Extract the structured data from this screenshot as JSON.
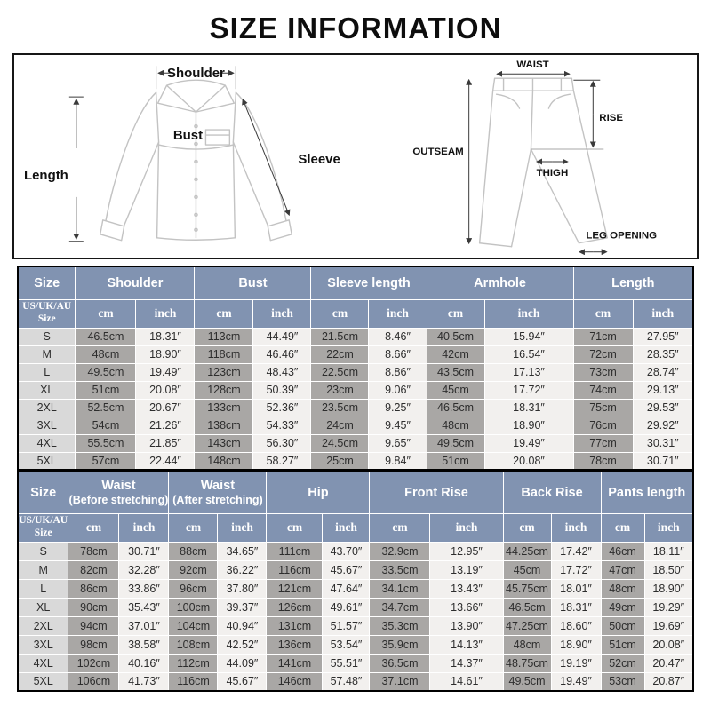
{
  "page": {
    "title": "SIZE INFORMATION"
  },
  "shirt_diagram": {
    "shoulder": "Shoulder",
    "length": "Length",
    "bust": "Bust",
    "sleeve": "Sleeve"
  },
  "pants_diagram": {
    "waist": "WAIST",
    "rise": "RISE",
    "outseam": "OUTSEAM",
    "thigh": "THIGH",
    "leg_opening": "LEG OPENING"
  },
  "colors": {
    "header_bg": "#8193b1",
    "header_text": "#ffffff",
    "size_cell_bg": "#d9d9d9",
    "cm_cell_bg": "#a9a7a5",
    "inch_cell_bg": "#f2f0ee",
    "cell_text": "#2d2d2d",
    "diagram_line": "#c3c3c3"
  },
  "top_table": {
    "corner": "Size",
    "region_line1": "US/UK/AU",
    "region_line2": "Size",
    "unit_cm": "cm",
    "unit_inch": "inch",
    "groups": [
      "Shoulder",
      "Bust",
      "Sleeve length",
      "Armhole",
      "Length"
    ],
    "rows": [
      {
        "size": "S",
        "values": [
          "46.5cm",
          "18.31″",
          "113cm",
          "44.49″",
          "21.5cm",
          "8.46″",
          "40.5cm",
          "15.94″",
          "71cm",
          "27.95″"
        ]
      },
      {
        "size": "M",
        "values": [
          "48cm",
          "18.90″",
          "118cm",
          "46.46″",
          "22cm",
          "8.66″",
          "42cm",
          "16.54″",
          "72cm",
          "28.35″"
        ]
      },
      {
        "size": "L",
        "values": [
          "49.5cm",
          "19.49″",
          "123cm",
          "48.43″",
          "22.5cm",
          "8.86″",
          "43.5cm",
          "17.13″",
          "73cm",
          "28.74″"
        ]
      },
      {
        "size": "XL",
        "values": [
          "51cm",
          "20.08″",
          "128cm",
          "50.39″",
          "23cm",
          "9.06″",
          "45cm",
          "17.72″",
          "74cm",
          "29.13″"
        ]
      },
      {
        "size": "2XL",
        "values": [
          "52.5cm",
          "20.67″",
          "133cm",
          "52.36″",
          "23.5cm",
          "9.25″",
          "46.5cm",
          "18.31″",
          "75cm",
          "29.53″"
        ]
      },
      {
        "size": "3XL",
        "values": [
          "54cm",
          "21.26″",
          "138cm",
          "54.33″",
          "24cm",
          "9.45″",
          "48cm",
          "18.90″",
          "76cm",
          "29.92″"
        ]
      },
      {
        "size": "4XL",
        "values": [
          "55.5cm",
          "21.85″",
          "143cm",
          "56.30″",
          "24.5cm",
          "9.65″",
          "49.5cm",
          "19.49″",
          "77cm",
          "30.31″"
        ]
      },
      {
        "size": "5XL",
        "values": [
          "57cm",
          "22.44″",
          "148cm",
          "58.27″",
          "25cm",
          "9.84″",
          "51cm",
          "20.08″",
          "78cm",
          "30.71″"
        ]
      }
    ]
  },
  "bottom_table": {
    "corner": "Size",
    "region_line1": "US/UK/AU",
    "region_line2": "Size",
    "unit_cm": "cm",
    "unit_inch": "inch",
    "groups": [
      {
        "title": "Waist",
        "sub": "(Before stretching)"
      },
      {
        "title": "Waist",
        "sub": "(After stretching)"
      },
      {
        "title": "Hip",
        "sub": ""
      },
      {
        "title": "Front Rise",
        "sub": ""
      },
      {
        "title": "Back Rise",
        "sub": ""
      },
      {
        "title": "Pants length",
        "sub": ""
      }
    ],
    "rows": [
      {
        "size": "S",
        "values": [
          "78cm",
          "30.71″",
          "88cm",
          "34.65″",
          "111cm",
          "43.70″",
          "32.9cm",
          "12.95″",
          "44.25cm",
          "17.42″",
          "46cm",
          "18.11″"
        ]
      },
      {
        "size": "M",
        "values": [
          "82cm",
          "32.28″",
          "92cm",
          "36.22″",
          "116cm",
          "45.67″",
          "33.5cm",
          "13.19″",
          "45cm",
          "17.72″",
          "47cm",
          "18.50″"
        ]
      },
      {
        "size": "L",
        "values": [
          "86cm",
          "33.86″",
          "96cm",
          "37.80″",
          "121cm",
          "47.64″",
          "34.1cm",
          "13.43″",
          "45.75cm",
          "18.01″",
          "48cm",
          "18.90″"
        ]
      },
      {
        "size": "XL",
        "values": [
          "90cm",
          "35.43″",
          "100cm",
          "39.37″",
          "126cm",
          "49.61″",
          "34.7cm",
          "13.66″",
          "46.5cm",
          "18.31″",
          "49cm",
          "19.29″"
        ]
      },
      {
        "size": "2XL",
        "values": [
          "94cm",
          "37.01″",
          "104cm",
          "40.94″",
          "131cm",
          "51.57″",
          "35.3cm",
          "13.90″",
          "47.25cm",
          "18.60″",
          "50cm",
          "19.69″"
        ]
      },
      {
        "size": "3XL",
        "values": [
          "98cm",
          "38.58″",
          "108cm",
          "42.52″",
          "136cm",
          "53.54″",
          "35.9cm",
          "14.13″",
          "48cm",
          "18.90″",
          "51cm",
          "20.08″"
        ]
      },
      {
        "size": "4XL",
        "values": [
          "102cm",
          "40.16″",
          "112cm",
          "44.09″",
          "141cm",
          "55.51″",
          "36.5cm",
          "14.37″",
          "48.75cm",
          "19.19″",
          "52cm",
          "20.47″"
        ]
      },
      {
        "size": "5XL",
        "values": [
          "106cm",
          "41.73″",
          "116cm",
          "45.67″",
          "146cm",
          "57.48″",
          "37.1cm",
          "14.61″",
          "49.5cm",
          "19.49″",
          "53cm",
          "20.87″"
        ]
      }
    ]
  }
}
